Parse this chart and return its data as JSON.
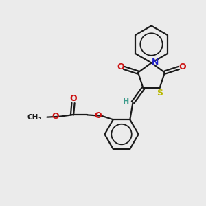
{
  "background_color": "#ebebeb",
  "bond_color": "#1a1a1a",
  "N_color": "#2020cc",
  "S_color": "#b8b800",
  "O_color": "#cc1010",
  "H_color": "#3a9a8a",
  "figsize": [
    3.0,
    3.0
  ],
  "dpi": 100,
  "xlim": [
    0,
    10
  ],
  "ylim": [
    0,
    10
  ]
}
